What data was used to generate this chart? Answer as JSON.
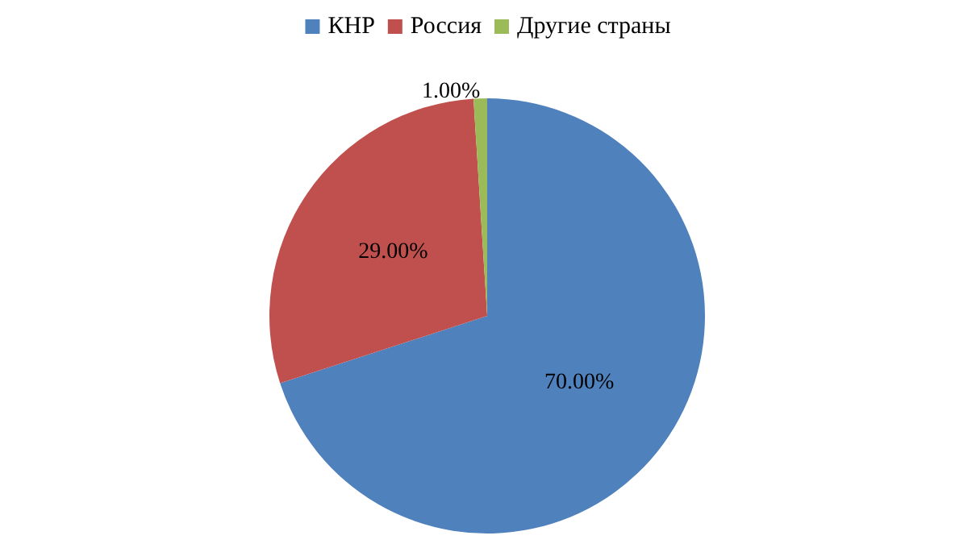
{
  "chart_data": {
    "type": "pie",
    "categories": [
      "КНР",
      "Россия",
      "Другие страны"
    ],
    "values": [
      70,
      29,
      1
    ],
    "colors": [
      "#4f81bd",
      "#c0504d",
      "#9bbb59"
    ],
    "value_labels": [
      "70.00%",
      "29.00%",
      "1.00%"
    ],
    "legend": "top"
  }
}
